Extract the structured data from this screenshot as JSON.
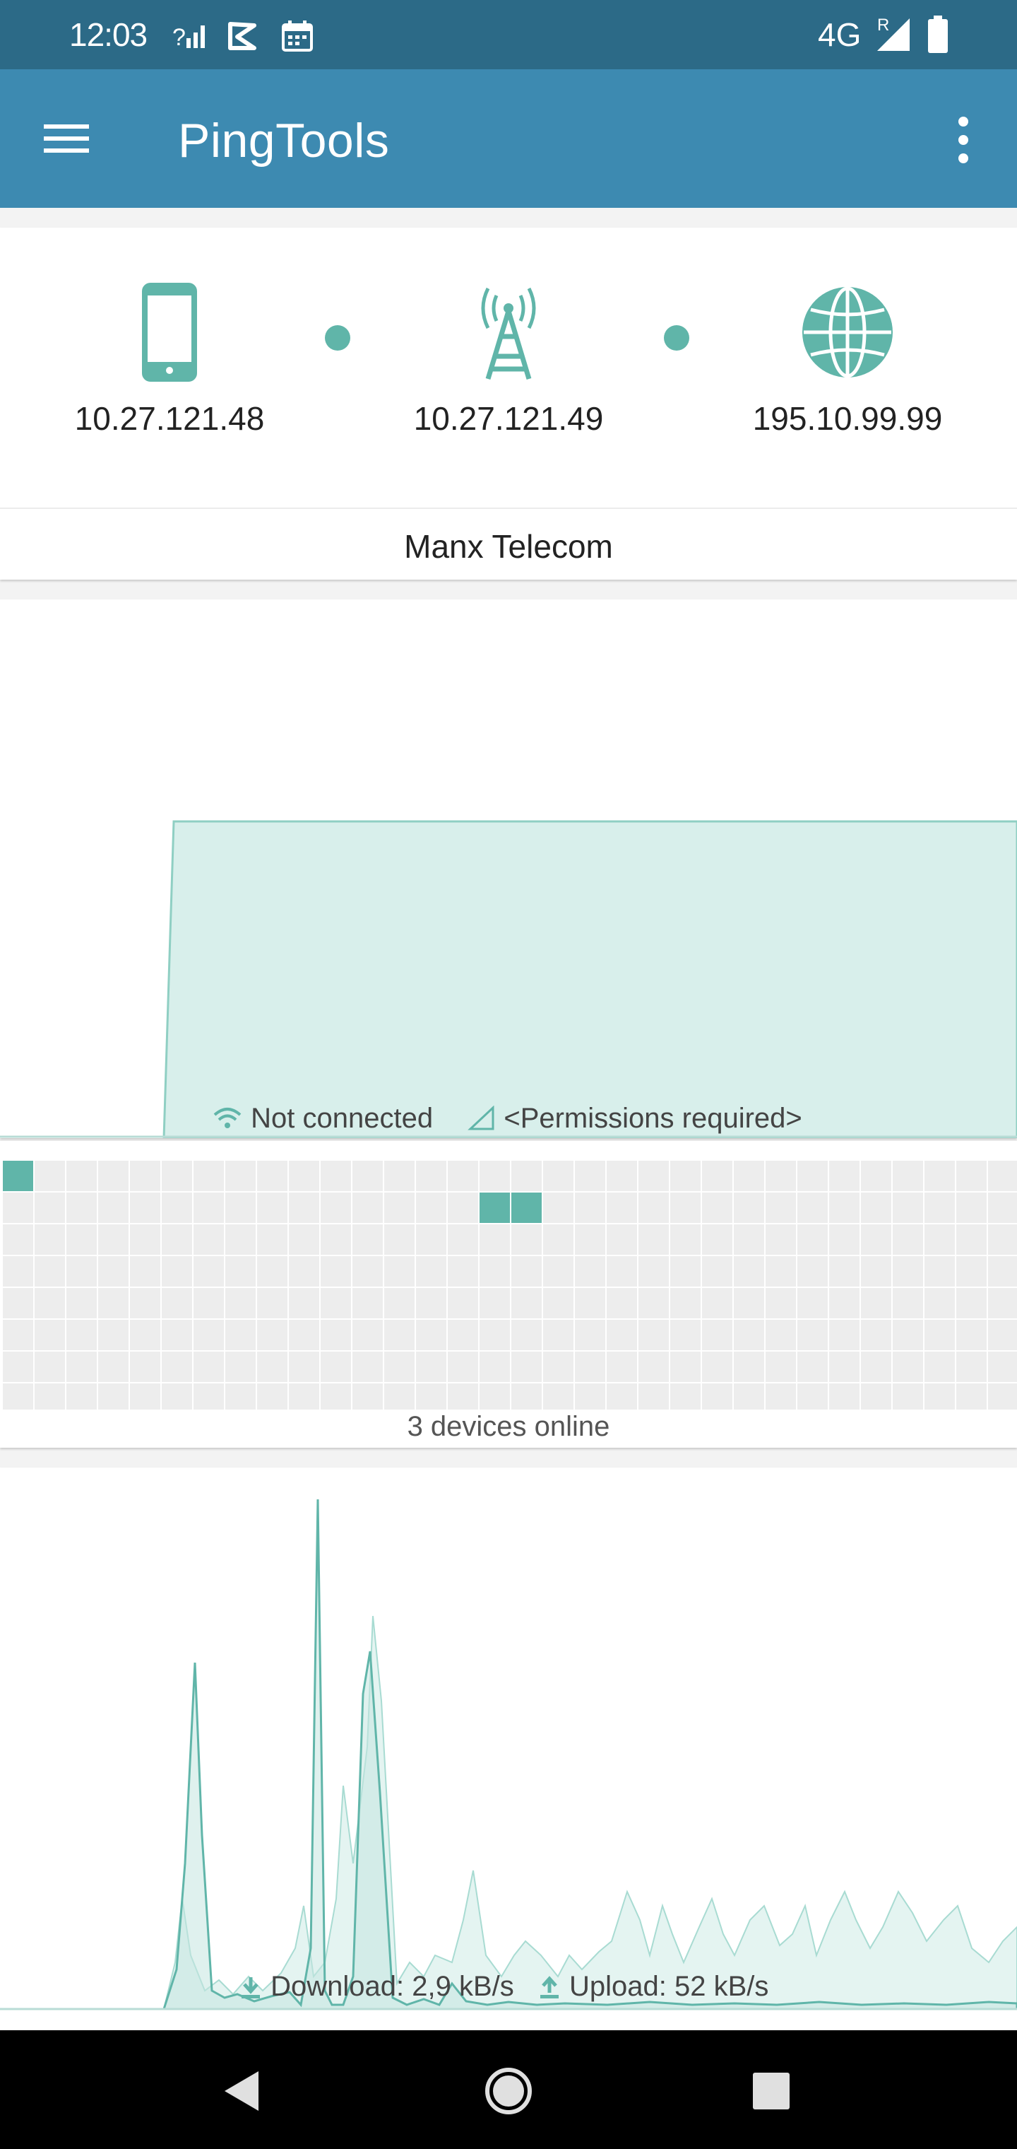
{
  "status_bar": {
    "time": "12:03",
    "network": "4G",
    "roaming": "R",
    "icons": [
      "signal-question-icon",
      "play-store-icon",
      "calendar-icon",
      "cell-signal-icon",
      "battery-icon"
    ]
  },
  "app_bar": {
    "title": "PingTools",
    "menu_icon": "hamburger-menu-icon",
    "overflow_icon": "more-vert-icon"
  },
  "route": {
    "nodes": [
      {
        "icon": "phone-icon",
        "ip": "10.27.121.48"
      },
      {
        "icon": "cell-tower-icon",
        "ip": "10.27.121.49"
      },
      {
        "icon": "globe-icon",
        "ip": "195.10.99.99"
      }
    ],
    "isp": "Manx Telecom"
  },
  "wifi": {
    "status": "Not connected",
    "permissions": "<Permissions required>"
  },
  "devices": {
    "caption": "3 devices online",
    "online_count": 3
  },
  "traffic": {
    "download_label": "Download: 2,9 kB/s",
    "upload_label": "Upload: 52 kB/s"
  },
  "colors": {
    "status_bar": "#2c6a87",
    "app_bar": "#3d8ab1",
    "accent": "#60b5a9",
    "accent_light": "#d8efeb"
  },
  "nav_bar": {
    "buttons": [
      "back-icon",
      "home-icon",
      "recents-icon"
    ]
  }
}
